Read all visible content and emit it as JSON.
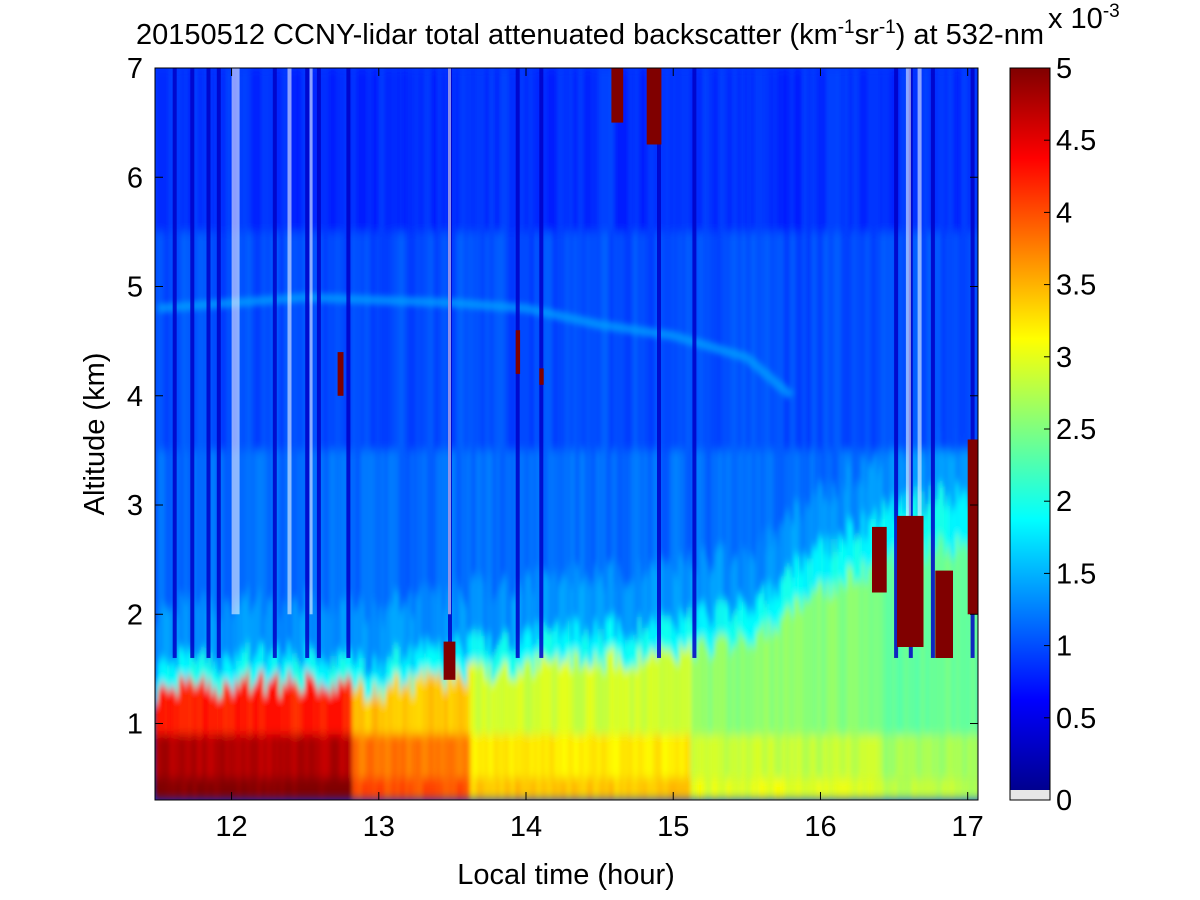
{
  "chart_data": {
    "type": "heatmap",
    "title": {
      "prefix": "20150512 CCNY-lidar total attenuated backscatter (km",
      "sup1": "-1",
      "mid": "sr",
      "sup2": "-1",
      "suffix": ") at 532-nm"
    },
    "xlabel": "Local time (hour)",
    "ylabel": "Altitude (km)",
    "xlim": [
      11.48,
      17.07
    ],
    "ylim": [
      0.3,
      7.0
    ],
    "xticks": [
      12,
      13,
      14,
      15,
      16,
      17
    ],
    "yticks": [
      1,
      2,
      3,
      4,
      5,
      6,
      7
    ],
    "colorbar": {
      "clim": [
        0,
        5
      ],
      "ticks": [
        0,
        0.5,
        1,
        1.5,
        2,
        2.5,
        3,
        3.5,
        4,
        4.5,
        5
      ],
      "tick_labels": [
        "0",
        "0.5",
        "1",
        "1.5",
        "2",
        "2.5",
        "3",
        "3.5",
        "4",
        "4.5",
        "5"
      ],
      "scale_base": "x 10",
      "scale_exp": "-3",
      "colormap": "jet"
    },
    "features": {
      "boundary_layer_top": {
        "x": [
          11.5,
          12.0,
          12.5,
          13.0,
          13.5,
          14.0,
          14.5,
          15.0,
          15.5,
          16.0,
          16.5,
          17.0
        ],
        "y": [
          1.55,
          1.6,
          1.6,
          1.55,
          1.7,
          1.8,
          1.85,
          1.9,
          2.1,
          2.6,
          3.0,
          3.1
        ]
      },
      "aerosol_layer": {
        "x": [
          11.5,
          12.5,
          13.5,
          14.0,
          14.5,
          15.0,
          15.5,
          15.8
        ],
        "y": [
          4.8,
          4.9,
          4.85,
          4.8,
          4.65,
          4.55,
          4.35,
          4.0
        ]
      },
      "near_surface_max_value": 5.0,
      "free_troposphere_value": 0.9
    }
  }
}
